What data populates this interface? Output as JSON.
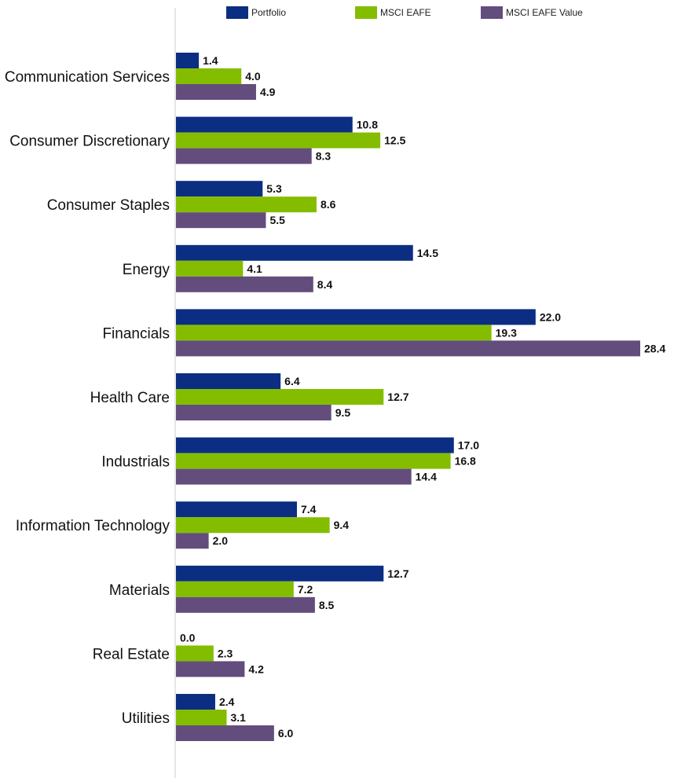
{
  "chart_data": {
    "type": "bar",
    "orientation": "horizontal",
    "categories": [
      "Communication Services",
      "Consumer Discretionary",
      "Consumer Staples",
      "Energy",
      "Financials",
      "Health Care",
      "Industrials",
      "Information Technology",
      "Materials",
      "Real Estate",
      "Utilities"
    ],
    "series": [
      {
        "name": "Portfolio",
        "color": "#0b2e83",
        "values": [
          1.4,
          10.8,
          5.3,
          14.5,
          22.0,
          6.4,
          17.0,
          7.4,
          12.7,
          0.0,
          2.4
        ],
        "labels": [
          "1.4",
          "10.8",
          "5.3",
          "14.5",
          "22.0",
          "6.4",
          "17.0",
          "7.4",
          "12.7",
          "0.0",
          "2.4"
        ]
      },
      {
        "name": "MSCI EAFE",
        "color": "#84bd00",
        "values": [
          4.0,
          12.5,
          8.6,
          4.1,
          19.3,
          12.7,
          16.8,
          9.4,
          7.2,
          2.3,
          3.1
        ],
        "labels": [
          "4.0",
          "12.5",
          "8.6",
          "4.1",
          "19.3",
          "12.7",
          "16.8",
          "9.4",
          "7.2",
          "2.3",
          "3.1"
        ]
      },
      {
        "name": "MSCI EAFE Value",
        "color": "#634d7d",
        "values": [
          4.9,
          8.3,
          5.5,
          8.4,
          28.4,
          9.5,
          14.4,
          2.0,
          8.5,
          4.2,
          6.0
        ],
        "labels": [
          "4.9",
          "8.3",
          "5.5",
          "8.4",
          "28.4",
          "9.5",
          "14.4",
          "2.0",
          "8.5",
          "4.2",
          "6.0"
        ]
      }
    ],
    "title": "",
    "xlabel": "",
    "ylabel": "",
    "xlim": [
      0,
      28.4
    ],
    "grid": false,
    "legend_position": "top"
  }
}
